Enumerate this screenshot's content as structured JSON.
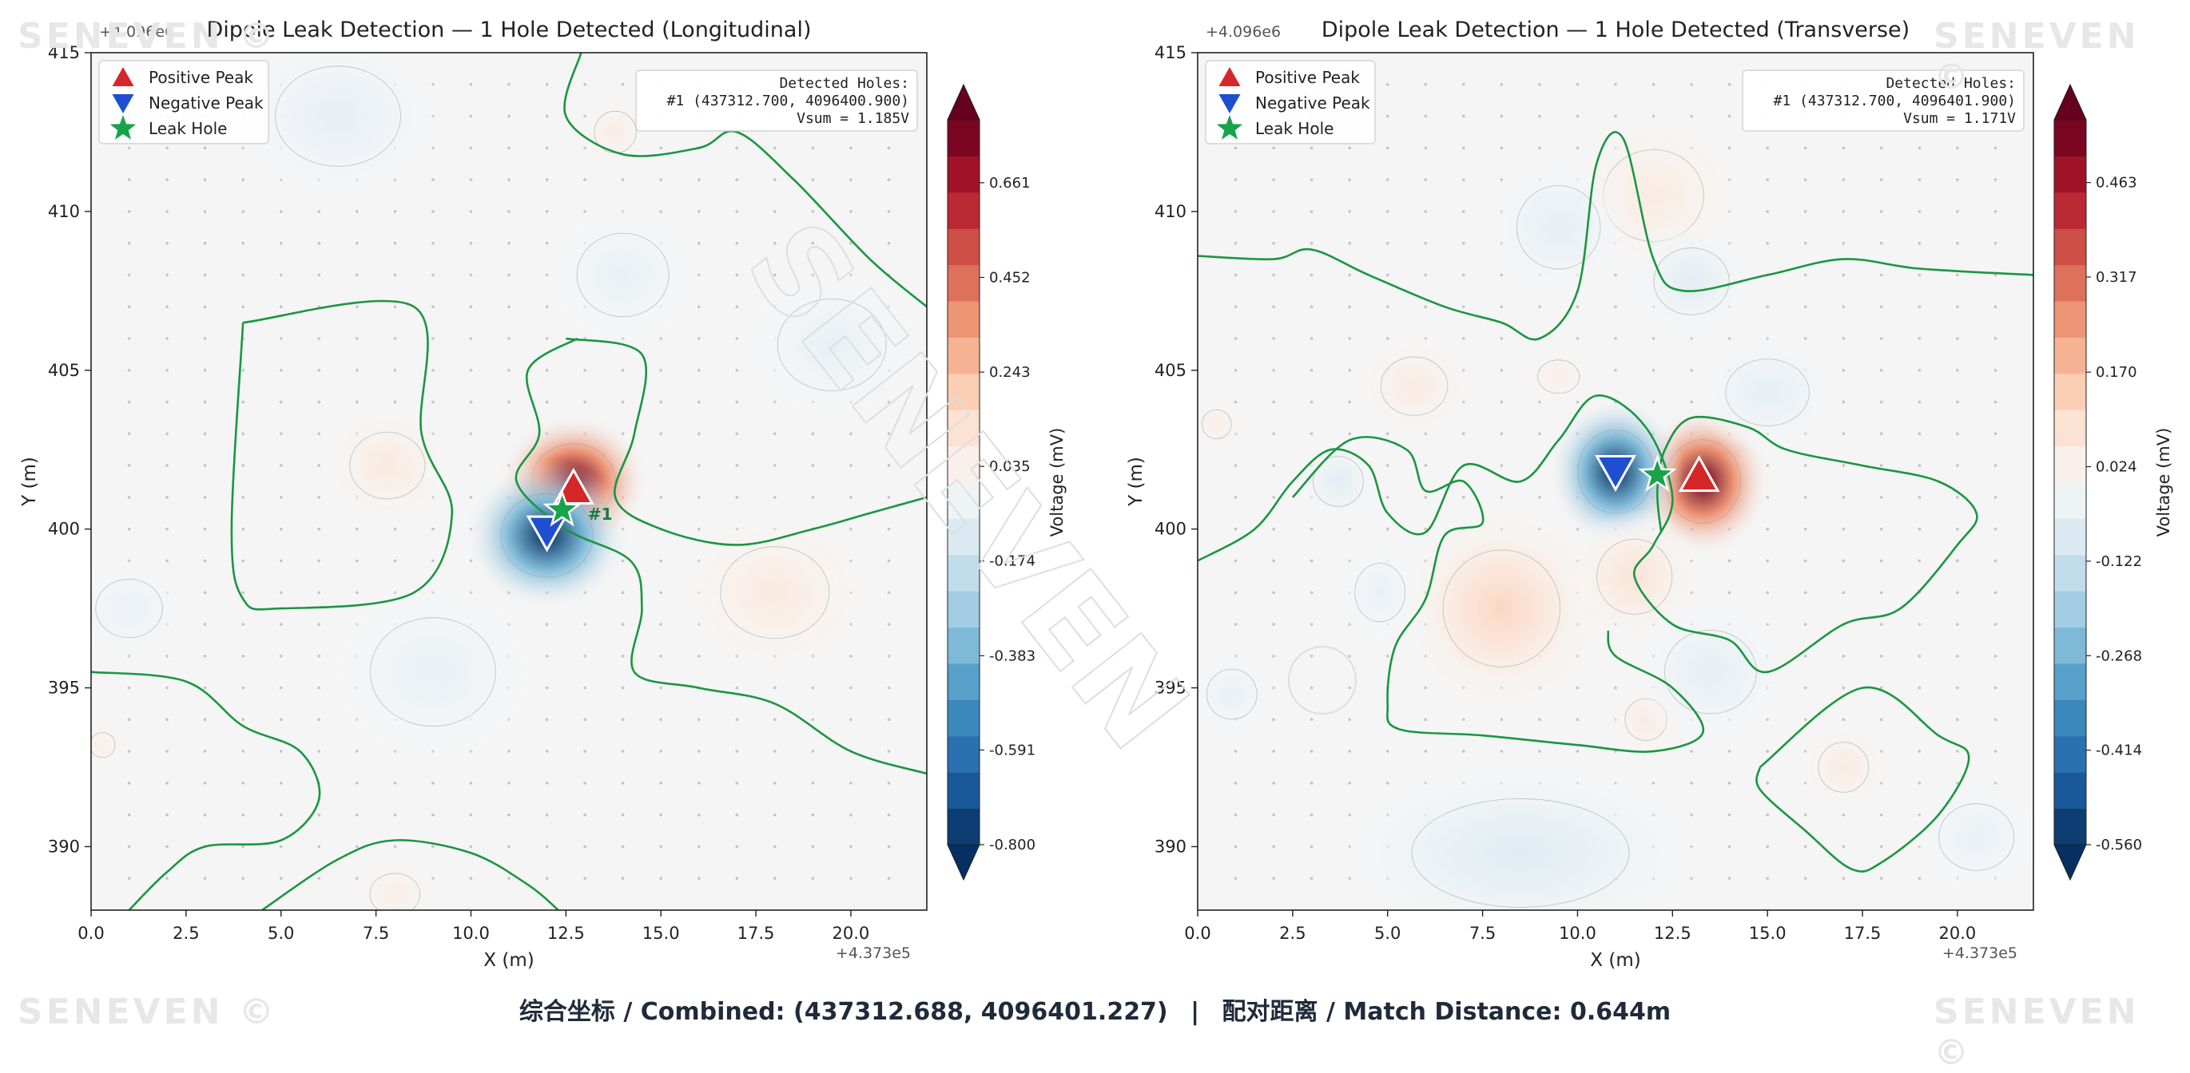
{
  "watermarks": {
    "corner_text": "SENEVEN ©",
    "center_text": "SENEVEN"
  },
  "footer": {
    "combined_text": "综合坐标 / Combined: (437312.688, 4096401.227)",
    "separator": "|",
    "match_text": "配对距离 / Match Distance: 0.644m"
  },
  "chart_data": [
    {
      "type": "heatmap",
      "title": "Dipole Leak Detection — 1 Hole Detected (Longitudinal)",
      "xlabel": "X (m)",
      "ylabel": "Y (m)",
      "x_offset_label": "+4.373e5",
      "y_offset_label": "+4.096e6",
      "xlim": [
        0,
        22
      ],
      "ylim": [
        388,
        415
      ],
      "x_ticks": [
        "0.0",
        "2.5",
        "5.0",
        "7.5",
        "10.0",
        "12.5",
        "15.0",
        "17.5",
        "20.0"
      ],
      "x_tick_values": [
        0,
        2.5,
        5,
        7.5,
        10,
        12.5,
        15,
        17.5,
        20
      ],
      "y_ticks": [
        "390",
        "395",
        "400",
        "405",
        "410",
        "415"
      ],
      "y_tick_values": [
        390,
        395,
        400,
        405,
        410,
        415
      ],
      "colorbar": {
        "label": "Voltage (mV)",
        "min": -0.8,
        "max": 0.8,
        "tick_labels": [
          "-0.800",
          "-0.591",
          "-0.383",
          "-0.174",
          "0.035",
          "0.243",
          "0.452",
          "0.661"
        ],
        "tick_values": [
          -0.8,
          -0.591,
          -0.383,
          -0.174,
          0.035,
          0.243,
          0.452,
          0.661
        ]
      },
      "legend": {
        "placement": "top-left",
        "entries": [
          {
            "label": "Positive Peak",
            "marker": "triangle-up",
            "color": "#d62728"
          },
          {
            "label": "Negative Peak",
            "marker": "triangle-down",
            "color": "#1f4fd1"
          },
          {
            "label": "Leak Hole",
            "marker": "star",
            "color": "#17a34a"
          }
        ]
      },
      "info_box": {
        "placement": "top-right",
        "lines": [
          "Detected Holes:",
          "#1  (437312.700, 4096400.900)",
          "Vsum = 1.185V"
        ]
      },
      "annotation": {
        "text": "#1",
        "x": 12.7,
        "y": 400.5
      },
      "positive_peak": {
        "x": 12.7,
        "y": 401.2
      },
      "negative_peak": {
        "x": 12.0,
        "y": 400.0
      },
      "leak_hole": {
        "x": 12.4,
        "y": 400.6
      },
      "blobs": [
        {
          "x": 12.7,
          "y": 401.5,
          "amp": 0.8,
          "sx": 1.0,
          "sy": 0.9
        },
        {
          "x": 12.0,
          "y": 399.8,
          "amp": -0.8,
          "sx": 1.1,
          "sy": 1.0
        },
        {
          "x": 7.8,
          "y": 402.0,
          "amp": 0.08,
          "sx": 0.9,
          "sy": 0.8
        },
        {
          "x": 18.0,
          "y": 398.0,
          "amp": 0.08,
          "sx": 1.3,
          "sy": 1.1
        },
        {
          "x": 6.5,
          "y": 413.0,
          "amp": -0.07,
          "sx": 1.5,
          "sy": 1.2
        },
        {
          "x": 14.0,
          "y": 408.0,
          "amp": -0.06,
          "sx": 1.1,
          "sy": 1.0
        },
        {
          "x": 9.0,
          "y": 395.5,
          "amp": -0.06,
          "sx": 1.5,
          "sy": 1.3
        },
        {
          "x": 19.5,
          "y": 405.8,
          "amp": -0.06,
          "sx": 1.3,
          "sy": 1.1
        },
        {
          "x": 1.0,
          "y": 397.5,
          "amp": -0.05,
          "sx": 0.8,
          "sy": 0.7
        },
        {
          "x": 13.8,
          "y": 412.5,
          "amp": 0.06,
          "sx": 0.5,
          "sy": 0.5
        },
        {
          "x": 8.0,
          "y": 388.5,
          "amp": 0.06,
          "sx": 0.6,
          "sy": 0.5
        },
        {
          "x": 0.3,
          "y": 393.2,
          "amp": 0.05,
          "sx": 0.3,
          "sy": 0.3
        }
      ],
      "contour_lines": [
        [
          [
            4,
            406.5
          ],
          [
            8.5,
            407
          ],
          [
            8.7,
            403
          ],
          [
            9.5,
            400.5
          ],
          [
            8.5,
            398
          ],
          [
            5,
            397.5
          ],
          [
            4,
            397.8
          ],
          [
            3.7,
            400
          ],
          [
            4,
            406.5
          ]
        ],
        [
          [
            12.5,
            406
          ],
          [
            14.5,
            405.5
          ],
          [
            14.3,
            403
          ],
          [
            13.8,
            401
          ],
          [
            15,
            400
          ],
          [
            17,
            399.5
          ],
          [
            19,
            400
          ],
          [
            20.5,
            400.5
          ],
          [
            22,
            401
          ]
        ],
        [
          [
            12.8,
            406
          ],
          [
            11.5,
            405
          ],
          [
            11.8,
            403
          ],
          [
            11.2,
            401.5
          ],
          [
            12.5,
            400
          ],
          [
            14.2,
            399
          ],
          [
            14.5,
            397.5
          ],
          [
            14.3,
            395.5
          ],
          [
            16,
            395
          ],
          [
            18,
            394.5
          ],
          [
            20,
            393
          ],
          [
            22,
            392.3
          ]
        ],
        [
          [
            0,
            395.5
          ],
          [
            2.5,
            395.2
          ],
          [
            4,
            393.8
          ],
          [
            5.5,
            393
          ],
          [
            6,
            391.5
          ],
          [
            5,
            390.2
          ],
          [
            3,
            390
          ],
          [
            2,
            389.2
          ],
          [
            1,
            388
          ]
        ],
        [
          [
            4.5,
            388
          ],
          [
            6.5,
            389.6
          ],
          [
            8,
            390.2
          ],
          [
            10,
            389.8
          ],
          [
            11.5,
            388.8
          ],
          [
            12.3,
            388
          ]
        ],
        [
          [
            12.9,
            415
          ],
          [
            12.5,
            413
          ],
          [
            14,
            411.8
          ],
          [
            16,
            412
          ],
          [
            17,
            412.5
          ],
          [
            18.5,
            411
          ],
          [
            20.5,
            408.5
          ],
          [
            22,
            407
          ]
        ]
      ]
    },
    {
      "type": "heatmap",
      "title": "Dipole Leak Detection — 1 Hole Detected (Transverse)",
      "xlabel": "X (m)",
      "ylabel": "Y (m)",
      "x_offset_label": "+4.373e5",
      "y_offset_label": "+4.096e6",
      "xlim": [
        0,
        22
      ],
      "ylim": [
        388,
        415
      ],
      "x_ticks": [
        "0.0",
        "2.5",
        "5.0",
        "7.5",
        "10.0",
        "12.5",
        "15.0",
        "17.5",
        "20.0"
      ],
      "x_tick_values": [
        0,
        2.5,
        5,
        7.5,
        10,
        12.5,
        15,
        17.5,
        20
      ],
      "y_ticks": [
        "390",
        "395",
        "400",
        "405",
        "410",
        "415"
      ],
      "y_tick_values": [
        390,
        395,
        400,
        405,
        410,
        415
      ],
      "colorbar": {
        "label": "Voltage (mV)",
        "min": -0.56,
        "max": 0.56,
        "tick_labels": [
          "-0.560",
          "-0.414",
          "-0.268",
          "-0.122",
          "0.024",
          "0.170",
          "0.317",
          "0.463"
        ],
        "tick_values": [
          -0.56,
          -0.414,
          -0.268,
          -0.122,
          0.024,
          0.17,
          0.317,
          0.463
        ]
      },
      "legend": {
        "placement": "top-left",
        "entries": [
          {
            "label": "Positive Peak",
            "marker": "triangle-up",
            "color": "#d62728"
          },
          {
            "label": "Negative Peak",
            "marker": "triangle-down",
            "color": "#1f4fd1"
          },
          {
            "label": "Leak Hole",
            "marker": "star",
            "color": "#17a34a"
          }
        ]
      },
      "info_box": {
        "placement": "top-right",
        "lines": [
          "Detected Holes:",
          "#1  (437312.700, 4096401.900)",
          "Vsum = 1.171V"
        ]
      },
      "positive_peak": {
        "x": 13.2,
        "y": 401.6
      },
      "negative_peak": {
        "x": 11.0,
        "y": 401.9
      },
      "leak_hole": {
        "x": 12.1,
        "y": 401.7
      },
      "blobs": [
        {
          "x": 13.3,
          "y": 401.5,
          "amp": 0.56,
          "sx": 0.9,
          "sy": 1.0
        },
        {
          "x": 11.0,
          "y": 401.8,
          "amp": -0.56,
          "sx": 0.9,
          "sy": 1.0
        },
        {
          "x": 8.0,
          "y": 397.5,
          "amp": 0.12,
          "sx": 1.4,
          "sy": 1.4
        },
        {
          "x": 11.5,
          "y": 398.5,
          "amp": 0.08,
          "sx": 0.9,
          "sy": 0.9
        },
        {
          "x": 12.0,
          "y": 410.5,
          "amp": 0.05,
          "sx": 1.2,
          "sy": 1.1
        },
        {
          "x": 5.7,
          "y": 404.5,
          "amp": 0.05,
          "sx": 0.8,
          "sy": 0.7
        },
        {
          "x": 9.5,
          "y": 404.8,
          "amp": 0.04,
          "sx": 0.5,
          "sy": 0.4
        },
        {
          "x": 0.5,
          "y": 403.3,
          "amp": 0.04,
          "sx": 0.35,
          "sy": 0.35
        },
        {
          "x": 11.8,
          "y": 394,
          "amp": 0.05,
          "sx": 0.5,
          "sy": 0.5
        },
        {
          "x": 17.0,
          "y": 392.5,
          "amp": 0.05,
          "sx": 0.6,
          "sy": 0.6
        },
        {
          "x": 8.5,
          "y": 389.8,
          "amp": -0.07,
          "sx": 2.6,
          "sy": 1.3
        },
        {
          "x": 9.5,
          "y": 409.5,
          "amp": -0.05,
          "sx": 1.0,
          "sy": 1.0
        },
        {
          "x": 13.0,
          "y": 407.8,
          "amp": -0.06,
          "sx": 0.9,
          "sy": 0.8
        },
        {
          "x": 15.0,
          "y": 404.3,
          "amp": -0.05,
          "sx": 1.0,
          "sy": 0.8
        },
        {
          "x": 13.5,
          "y": 395.5,
          "amp": -0.05,
          "sx": 1.1,
          "sy": 1.0
        },
        {
          "x": 3.7,
          "y": 401.5,
          "amp": -0.06,
          "sx": 0.6,
          "sy": 0.6
        },
        {
          "x": 4.8,
          "y": 398.0,
          "amp": -0.04,
          "sx": 0.6,
          "sy": 0.7
        },
        {
          "x": 0.9,
          "y": 394.8,
          "amp": -0.04,
          "sx": 0.6,
          "sy": 0.6
        },
        {
          "x": 20.5,
          "y": 390.3,
          "amp": -0.04,
          "sx": 0.9,
          "sy": 0.8
        }
      ],
      "contour_lines": [
        [
          [
            0,
            408.6
          ],
          [
            2,
            408.5
          ],
          [
            3,
            408.8
          ],
          [
            4.5,
            408
          ],
          [
            6.5,
            407
          ],
          [
            8,
            406.5
          ],
          [
            9,
            406
          ],
          [
            10,
            407.5
          ],
          [
            10.5,
            411.5
          ],
          [
            11.2,
            412.3
          ],
          [
            12,
            408.5
          ],
          [
            12.8,
            407.5
          ],
          [
            15,
            408
          ],
          [
            17,
            408.5
          ],
          [
            19,
            408.2
          ],
          [
            22,
            408
          ]
        ],
        [
          [
            0,
            399
          ],
          [
            1.5,
            400
          ],
          [
            2.5,
            401.5
          ],
          [
            3.5,
            402.5
          ],
          [
            4.5,
            402
          ],
          [
            5,
            400.5
          ],
          [
            6,
            399.9
          ],
          [
            7,
            402
          ],
          [
            8.5,
            401.5
          ],
          [
            9.5,
            402.8
          ],
          [
            10.5,
            404.2
          ],
          [
            11.8,
            403.2
          ],
          [
            12.5,
            401
          ],
          [
            12,
            399.5
          ],
          [
            11.5,
            398.5
          ],
          [
            12.5,
            397
          ],
          [
            14,
            396.5
          ],
          [
            15,
            395.5
          ],
          [
            17,
            397
          ],
          [
            18.5,
            397.5
          ],
          [
            20,
            399.5
          ],
          [
            20.5,
            400.5
          ],
          [
            19.5,
            401.5
          ],
          [
            17.5,
            402
          ],
          [
            15.5,
            402.5
          ],
          [
            14.5,
            403.2
          ],
          [
            13,
            403.5
          ],
          [
            12.3,
            402.5
          ],
          [
            12.1,
            401.2
          ],
          [
            12.2,
            399.9
          ]
        ],
        [
          [
            2.5,
            401
          ],
          [
            4,
            402.8
          ],
          [
            5.5,
            402.5
          ],
          [
            6,
            401.2
          ],
          [
            7,
            401.5
          ],
          [
            7.5,
            400.2
          ],
          [
            6.5,
            399.8
          ],
          [
            6,
            397.8
          ],
          [
            5.2,
            396.3
          ],
          [
            5,
            394.5
          ],
          [
            5.3,
            393.7
          ],
          [
            7.5,
            393.5
          ],
          [
            10,
            393.2
          ],
          [
            12,
            393
          ],
          [
            13.3,
            393.6
          ],
          [
            12.5,
            395
          ],
          [
            11,
            396
          ],
          [
            10.8,
            396.8
          ]
        ],
        [
          [
            14.8,
            392.5
          ],
          [
            17.5,
            395
          ],
          [
            19.5,
            393.5
          ],
          [
            20.3,
            392.8
          ],
          [
            19.5,
            391
          ],
          [
            18,
            389.5
          ],
          [
            17.2,
            389.3
          ],
          [
            16,
            390.5
          ],
          [
            14.8,
            391.8
          ],
          [
            14.8,
            392.5
          ]
        ]
      ]
    }
  ]
}
